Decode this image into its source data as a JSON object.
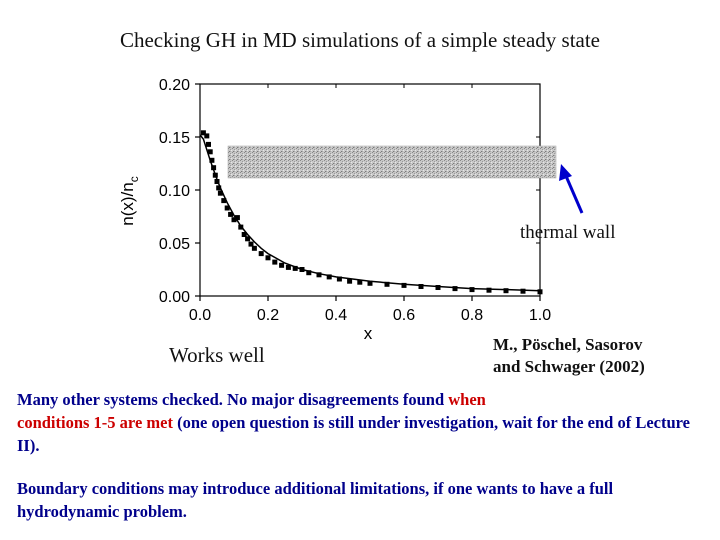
{
  "slide": {
    "title": "Checking GH in MD simulations of a simple steady state",
    "thermal_wall_label": "thermal wall",
    "works_well": "Works well",
    "citation_line1": "M., Pöschel, Sasorov",
    "citation_line2": "and Schwager (2002)",
    "para1_a": "Many other systems checked. No major disagreements found ",
    "para1_when": "when",
    "para1_b": "conditions 1-5 are met",
    "para1_c": " (one open question is still under investigation, wait for the end of Lecture II).",
    "para2": "Boundary conditions may introduce additional limitations, if one wants to have a full hydrodynamic problem.",
    "colors": {
      "text_blue": "#00008b",
      "highlight_red": "#cc0000",
      "arrow_blue": "#0000cc",
      "wall_gray": "#b8b8b8"
    }
  },
  "chart_data": {
    "type": "scatter",
    "xlabel": "x",
    "ylabel": "n(x)/n",
    "ylabel_sub": "c",
    "xlim": [
      0.0,
      1.0
    ],
    "ylim": [
      0.0,
      0.2
    ],
    "x_ticks": [
      "0.0",
      "0.2",
      "0.4",
      "0.6",
      "0.8",
      "1.0"
    ],
    "y_ticks": [
      "0.00",
      "0.05",
      "0.10",
      "0.15",
      "0.20"
    ],
    "x_tick_values": [
      0.0,
      0.2,
      0.4,
      0.6,
      0.8,
      1.0
    ],
    "y_tick_values": [
      0.0,
      0.05,
      0.1,
      0.15,
      0.2
    ],
    "grid": false,
    "series": [
      {
        "kind": "markers",
        "x": [
          0.01,
          0.02,
          0.025,
          0.03,
          0.035,
          0.04,
          0.045,
          0.05,
          0.055,
          0.06,
          0.07,
          0.08,
          0.09,
          0.1,
          0.11,
          0.12,
          0.13,
          0.14,
          0.15,
          0.16,
          0.18,
          0.2,
          0.22,
          0.24,
          0.26,
          0.28,
          0.3,
          0.32,
          0.35,
          0.38,
          0.41,
          0.44,
          0.47,
          0.5,
          0.55,
          0.6,
          0.65,
          0.7,
          0.75,
          0.8,
          0.85,
          0.9,
          0.95,
          1.0
        ],
        "y": [
          0.154,
          0.151,
          0.143,
          0.136,
          0.128,
          0.121,
          0.114,
          0.108,
          0.102,
          0.097,
          0.09,
          0.083,
          0.077,
          0.072,
          0.074,
          0.065,
          0.058,
          0.054,
          0.049,
          0.045,
          0.04,
          0.036,
          0.032,
          0.029,
          0.027,
          0.026,
          0.025,
          0.022,
          0.02,
          0.018,
          0.016,
          0.014,
          0.013,
          0.012,
          0.011,
          0.01,
          0.009,
          0.008,
          0.007,
          0.006,
          0.0055,
          0.005,
          0.0045,
          0.004
        ]
      },
      {
        "kind": "line",
        "x": [
          0.0,
          0.01,
          0.02,
          0.03,
          0.04,
          0.05,
          0.06,
          0.08,
          0.1,
          0.12,
          0.14,
          0.16,
          0.18,
          0.2,
          0.25,
          0.3,
          0.35,
          0.4,
          0.5,
          0.6,
          0.7,
          0.8,
          0.9,
          1.0
        ],
        "y": [
          0.152,
          0.148,
          0.138,
          0.128,
          0.119,
          0.11,
          0.102,
          0.088,
          0.076,
          0.066,
          0.058,
          0.051,
          0.045,
          0.04,
          0.031,
          0.025,
          0.021,
          0.018,
          0.014,
          0.011,
          0.009,
          0.007,
          0.006,
          0.005
        ]
      }
    ]
  }
}
